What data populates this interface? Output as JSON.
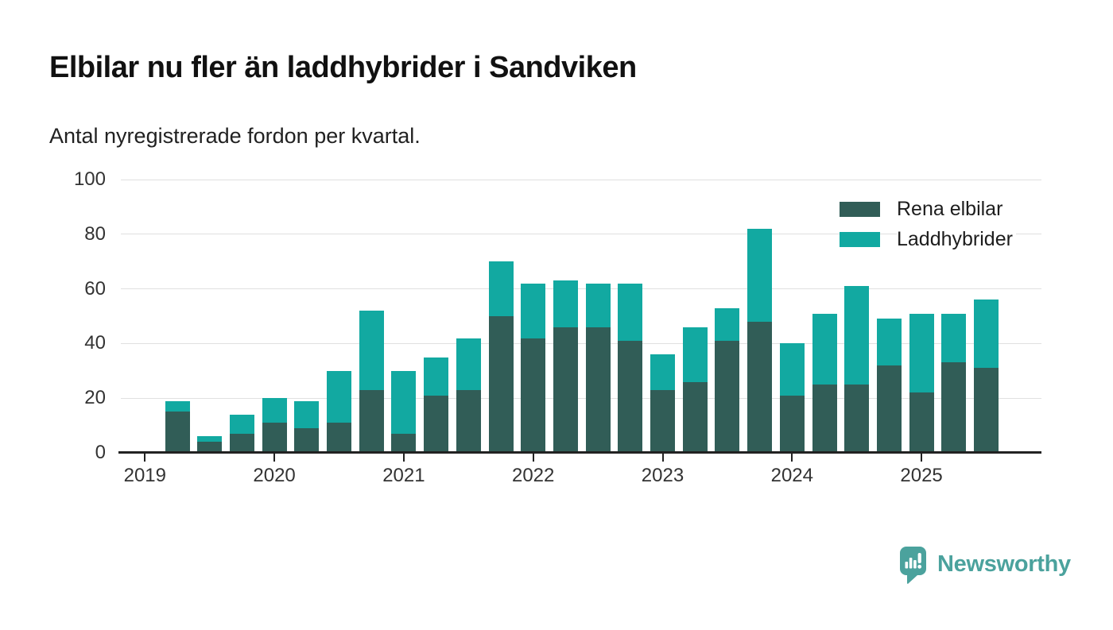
{
  "header": {
    "title": "Elbilar nu fler än laddhybrider i Sandviken",
    "subtitle": "Antal nyregistrerade fordon per kvartal."
  },
  "chart_data": {
    "type": "bar",
    "stacked": true,
    "x": [
      "2019 Q1",
      "2019 Q2",
      "2019 Q3",
      "2019 Q4",
      "2020 Q1",
      "2020 Q2",
      "2020 Q3",
      "2020 Q4",
      "2021 Q1",
      "2021 Q2",
      "2021 Q3",
      "2021 Q4",
      "2022 Q1",
      "2022 Q2",
      "2022 Q3",
      "2022 Q4",
      "2023 Q1",
      "2023 Q2",
      "2023 Q3",
      "2023 Q4",
      "2024 Q1",
      "2024 Q2",
      "2024 Q3",
      "2024 Q4",
      "2025 Q1",
      "2025 Q2",
      "2025 Q3"
    ],
    "series": [
      {
        "name": "Rena elbilar",
        "color": "#315d57",
        "values": [
          0,
          15,
          4,
          7,
          11,
          9,
          11,
          23,
          7,
          21,
          23,
          50,
          42,
          46,
          46,
          41,
          23,
          26,
          41,
          48,
          21,
          25,
          25,
          32,
          22,
          33,
          31
        ]
      },
      {
        "name": "Laddhybrider",
        "color": "#12a9a1",
        "values": [
          0,
          4,
          2,
          7,
          9,
          10,
          19,
          29,
          23,
          14,
          19,
          20,
          20,
          17,
          16,
          21,
          13,
          20,
          12,
          34,
          19,
          26,
          36,
          17,
          29,
          18,
          25
        ]
      }
    ],
    "ylim": [
      0,
      100
    ],
    "yticks": [
      0,
      20,
      40,
      60,
      80,
      100
    ],
    "xtick_labels": [
      "2019",
      "2020",
      "2021",
      "2022",
      "2023",
      "2024",
      "2025"
    ],
    "grid": true,
    "legend_position": "top-right"
  },
  "colors": {
    "axis": "#222222",
    "grid": "#e0e0e0",
    "tick_text": "#333333"
  },
  "footer": {
    "brand": "Newsworthy",
    "brand_color": "#4ba29d"
  }
}
